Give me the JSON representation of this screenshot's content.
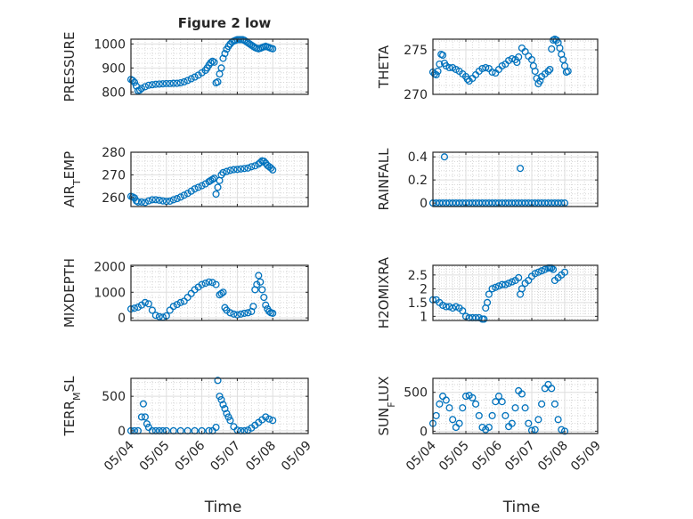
{
  "figure": {
    "title": "Figure 2 low",
    "marker_color": "#0072BD"
  },
  "chart_data": [
    {
      "id": "pressure",
      "type": "scatter",
      "title": "Figure 2 low",
      "ylabel": "PRESSURE",
      "ylabel_parts": [
        {
          "t": "PRESSURE"
        }
      ],
      "xlim": [
        0,
        5
      ],
      "ylim": [
        790,
        1020
      ],
      "yticks": [
        800,
        900,
        1000
      ],
      "x": [
        0.0,
        0.05,
        0.1,
        0.15,
        0.2,
        0.25,
        0.3,
        0.4,
        0.5,
        0.6,
        0.7,
        0.8,
        0.9,
        1.0,
        1.1,
        1.2,
        1.3,
        1.4,
        1.5,
        1.6,
        1.7,
        1.8,
        1.9,
        2.0,
        2.1,
        2.15,
        2.2,
        2.25,
        2.3,
        2.35,
        2.4,
        2.45,
        2.5,
        2.55,
        2.6,
        2.65,
        2.7,
        2.75,
        2.8,
        2.85,
        2.9,
        2.95,
        3.0,
        3.05,
        3.1,
        3.15,
        3.2,
        3.25,
        3.3,
        3.35,
        3.4,
        3.45,
        3.5,
        3.55,
        3.6,
        3.65,
        3.7,
        3.75,
        3.8,
        3.85,
        3.9,
        3.95,
        4.0
      ],
      "y": [
        852,
        848,
        840,
        825,
        805,
        808,
        815,
        822,
        828,
        830,
        832,
        833,
        834,
        835,
        835,
        836,
        836,
        838,
        842,
        848,
        855,
        862,
        870,
        880,
        890,
        900,
        912,
        922,
        928,
        924,
        838,
        842,
        875,
        900,
        940,
        960,
        978,
        990,
        1000,
        1008,
        1012,
        1015,
        1018,
        1018,
        1018,
        1018,
        1015,
        1010,
        1005,
        1000,
        995,
        990,
        985,
        982,
        980,
        982,
        985,
        988,
        990,
        988,
        985,
        982,
        980
      ]
    },
    {
      "id": "theta",
      "type": "scatter",
      "ylabel": "THETA",
      "ylabel_parts": [
        {
          "t": "THETA"
        }
      ],
      "xlim": [
        0,
        5
      ],
      "ylim": [
        270,
        276.2
      ],
      "yticks": [
        270,
        275
      ],
      "x": [
        0.0,
        0.05,
        0.1,
        0.15,
        0.2,
        0.25,
        0.3,
        0.35,
        0.4,
        0.5,
        0.6,
        0.7,
        0.8,
        0.9,
        1.0,
        1.05,
        1.1,
        1.2,
        1.3,
        1.4,
        1.5,
        1.6,
        1.7,
        1.8,
        1.9,
        2.0,
        2.1,
        2.2,
        2.3,
        2.4,
        2.5,
        2.55,
        2.6,
        2.7,
        2.8,
        2.9,
        3.0,
        3.05,
        3.1,
        3.15,
        3.2,
        3.25,
        3.3,
        3.4,
        3.5,
        3.55,
        3.6,
        3.65,
        3.7,
        3.75,
        3.8,
        3.85,
        3.9,
        3.95,
        4.0,
        4.05,
        4.1
      ],
      "y": [
        272.5,
        272.3,
        272.2,
        272.6,
        273.4,
        274.5,
        274.4,
        273.5,
        273.2,
        273.0,
        273.0,
        272.8,
        272.6,
        272.3,
        272.0,
        271.7,
        271.5,
        271.8,
        272.2,
        272.6,
        272.9,
        273.0,
        272.9,
        272.5,
        272.4,
        272.8,
        273.2,
        273.4,
        273.8,
        274.0,
        273.9,
        273.6,
        274.2,
        275.2,
        274.8,
        274.3,
        273.9,
        273.2,
        272.6,
        271.8,
        271.2,
        271.5,
        272.0,
        272.3,
        272.6,
        272.8,
        275.1,
        276.1,
        276.2,
        276.1,
        275.8,
        275.2,
        274.5,
        273.9,
        273.2,
        272.5,
        272.6
      ]
    },
    {
      "id": "air_temp",
      "type": "scatter",
      "ylabel": "AIR_TEMP",
      "ylabel_parts": [
        {
          "t": "AIR"
        },
        {
          "t": "T",
          "sub": true
        },
        {
          "t": "EMP"
        }
      ],
      "xlim": [
        0,
        5
      ],
      "ylim": [
        256,
        280
      ],
      "yticks": [
        260,
        270,
        280
      ],
      "x": [
        0.0,
        0.05,
        0.1,
        0.15,
        0.2,
        0.3,
        0.4,
        0.5,
        0.6,
        0.7,
        0.8,
        0.9,
        1.0,
        1.1,
        1.2,
        1.3,
        1.4,
        1.5,
        1.6,
        1.7,
        1.8,
        1.9,
        2.0,
        2.1,
        2.2,
        2.25,
        2.3,
        2.35,
        2.4,
        2.45,
        2.5,
        2.55,
        2.6,
        2.7,
        2.8,
        2.9,
        3.0,
        3.1,
        3.2,
        3.3,
        3.4,
        3.5,
        3.6,
        3.65,
        3.7,
        3.75,
        3.8,
        3.85,
        3.9,
        3.95,
        4.0
      ],
      "y": [
        260.5,
        260.2,
        259.8,
        258.5,
        258.0,
        258.0,
        257.8,
        258.5,
        259.0,
        259.0,
        258.8,
        258.5,
        258.3,
        258.4,
        259.0,
        259.5,
        260.2,
        261.0,
        261.8,
        262.8,
        263.8,
        264.5,
        265.2,
        266.0,
        267.0,
        267.5,
        268.0,
        268.5,
        261.5,
        264.5,
        267.5,
        270.0,
        271.0,
        271.5,
        272.0,
        272.3,
        272.4,
        272.6,
        272.8,
        273.0,
        273.6,
        274.0,
        274.8,
        275.5,
        276.2,
        276.0,
        275.2,
        274.2,
        273.6,
        273.0,
        272.2
      ]
    },
    {
      "id": "rainfall",
      "type": "scatter",
      "ylabel": "RAINFALL",
      "ylabel_parts": [
        {
          "t": "RAINFALL"
        }
      ],
      "xlim": [
        0,
        5
      ],
      "ylim": [
        -0.03,
        0.44
      ],
      "yticks": [
        0,
        0.2,
        0.4
      ],
      "x": [
        0.0,
        0.1,
        0.2,
        0.3,
        0.4,
        0.5,
        0.6,
        0.7,
        0.8,
        0.9,
        1.0,
        1.1,
        1.2,
        1.3,
        1.4,
        1.5,
        1.6,
        1.7,
        1.8,
        1.9,
        2.0,
        2.1,
        2.2,
        2.3,
        2.4,
        2.5,
        2.6,
        2.7,
        2.8,
        2.9,
        3.0,
        3.1,
        3.2,
        3.3,
        3.4,
        3.5,
        3.6,
        3.7,
        3.8,
        3.9,
        4.0,
        0.35,
        2.65
      ],
      "y": [
        0,
        0,
        0,
        0,
        0,
        0,
        0,
        0,
        0,
        0,
        0,
        0,
        0,
        0,
        0,
        0,
        0,
        0,
        0,
        0,
        0,
        0,
        0,
        0,
        0,
        0,
        0,
        0,
        0,
        0,
        0,
        0,
        0,
        0,
        0,
        0,
        0,
        0,
        0,
        0,
        0,
        0.4,
        0.3
      ]
    },
    {
      "id": "mixdepth",
      "type": "scatter",
      "ylabel": "MIXDEPTH",
      "ylabel_parts": [
        {
          "t": "MIXDEPTH"
        }
      ],
      "xlim": [
        0,
        5
      ],
      "ylim": [
        -100,
        2050
      ],
      "yticks": [
        0,
        1000,
        2000
      ],
      "x": [
        0.0,
        0.1,
        0.2,
        0.3,
        0.4,
        0.5,
        0.6,
        0.7,
        0.8,
        0.9,
        1.0,
        1.1,
        1.2,
        1.3,
        1.4,
        1.5,
        1.6,
        1.7,
        1.8,
        1.9,
        2.0,
        2.1,
        2.2,
        2.3,
        2.4,
        2.5,
        2.55,
        2.6,
        2.65,
        2.7,
        2.8,
        2.9,
        3.0,
        3.1,
        3.2,
        3.3,
        3.4,
        3.45,
        3.5,
        3.55,
        3.6,
        3.65,
        3.7,
        3.75,
        3.8,
        3.85,
        3.9,
        3.95,
        4.0
      ],
      "y": [
        350,
        380,
        420,
        500,
        600,
        550,
        300,
        100,
        50,
        30,
        80,
        300,
        450,
        520,
        600,
        650,
        800,
        950,
        1100,
        1200,
        1300,
        1350,
        1400,
        1380,
        1300,
        900,
        950,
        1000,
        400,
        300,
        200,
        150,
        120,
        150,
        180,
        200,
        250,
        450,
        1100,
        1300,
        1650,
        1400,
        1100,
        800,
        500,
        350,
        250,
        200,
        180
      ]
    },
    {
      "id": "h2omixra",
      "type": "scatter",
      "ylabel": "H2OMIXRA",
      "ylabel_parts": [
        {
          "t": "H2OMIXRA"
        }
      ],
      "xlim": [
        0,
        5
      ],
      "ylim": [
        0.85,
        2.85
      ],
      "yticks": [
        1,
        1.5,
        2,
        2.5
      ],
      "x": [
        0.0,
        0.1,
        0.2,
        0.3,
        0.4,
        0.5,
        0.6,
        0.7,
        0.8,
        0.9,
        1.0,
        1.1,
        1.2,
        1.3,
        1.4,
        1.5,
        1.55,
        1.6,
        1.65,
        1.7,
        1.8,
        1.9,
        2.0,
        2.1,
        2.2,
        2.3,
        2.4,
        2.5,
        2.6,
        2.65,
        2.7,
        2.8,
        2.9,
        3.0,
        3.1,
        3.2,
        3.3,
        3.4,
        3.5,
        3.55,
        3.6,
        3.65,
        3.7,
        3.8,
        3.9,
        4.0
      ],
      "y": [
        1.6,
        1.6,
        1.5,
        1.4,
        1.35,
        1.35,
        1.3,
        1.35,
        1.3,
        1.2,
        1.0,
        0.95,
        0.95,
        0.95,
        0.95,
        0.9,
        0.9,
        1.3,
        1.5,
        1.8,
        2.0,
        2.05,
        2.1,
        2.15,
        2.15,
        2.2,
        2.25,
        2.3,
        2.4,
        1.8,
        2.0,
        2.2,
        2.3,
        2.45,
        2.55,
        2.6,
        2.65,
        2.7,
        2.75,
        2.75,
        2.75,
        2.7,
        2.3,
        2.4,
        2.5,
        2.6
      ]
    },
    {
      "id": "terr_msl",
      "type": "scatter",
      "ylabel": "TERR_MSL",
      "ylabel_parts": [
        {
          "t": "TERR"
        },
        {
          "t": "M",
          "sub": true
        },
        {
          "t": "SL"
        }
      ],
      "xlim": [
        0,
        5
      ],
      "ylim": [
        -40,
        760
      ],
      "yticks": [
        0,
        500
      ],
      "x": [
        0.0,
        0.1,
        0.2,
        0.3,
        0.35,
        0.4,
        0.45,
        0.5,
        0.6,
        0.7,
        0.8,
        0.9,
        1.0,
        1.2,
        1.4,
        1.6,
        1.8,
        2.0,
        2.2,
        2.3,
        2.4,
        2.45,
        2.5,
        2.55,
        2.6,
        2.65,
        2.7,
        2.75,
        2.8,
        2.9,
        3.0,
        3.1,
        3.2,
        3.3,
        3.4,
        3.5,
        3.6,
        3.7,
        3.8,
        3.9,
        4.0
      ],
      "y": [
        0,
        0,
        0,
        200,
        390,
        200,
        100,
        50,
        0,
        0,
        0,
        0,
        0,
        0,
        0,
        0,
        0,
        0,
        0,
        0,
        50,
        730,
        500,
        450,
        380,
        320,
        250,
        200,
        150,
        60,
        10,
        0,
        0,
        10,
        40,
        80,
        120,
        160,
        200,
        170,
        150
      ]
    },
    {
      "id": "sun_flux",
      "type": "scatter",
      "ylabel": "SUN_FLUX",
      "ylabel_parts": [
        {
          "t": "SUN"
        },
        {
          "t": "F",
          "sub": true
        },
        {
          "t": "LUX"
        }
      ],
      "xlim": [
        0,
        5
      ],
      "ylim": [
        -30,
        680
      ],
      "yticks": [
        0,
        500
      ],
      "x": [
        0.0,
        0.1,
        0.2,
        0.3,
        0.4,
        0.5,
        0.6,
        0.7,
        0.8,
        0.9,
        1.0,
        1.1,
        1.2,
        1.3,
        1.4,
        1.5,
        1.6,
        1.7,
        1.8,
        1.9,
        2.0,
        2.1,
        2.2,
        2.3,
        2.4,
        2.5,
        2.6,
        2.7,
        2.8,
        2.9,
        3.0,
        3.1,
        3.2,
        3.3,
        3.4,
        3.5,
        3.6,
        3.7,
        3.8,
        3.9,
        4.0
      ],
      "y": [
        100,
        200,
        350,
        450,
        400,
        300,
        150,
        50,
        100,
        300,
        450,
        460,
        430,
        350,
        200,
        50,
        20,
        50,
        200,
        380,
        450,
        380,
        200,
        60,
        100,
        300,
        520,
        480,
        300,
        100,
        10,
        20,
        150,
        350,
        550,
        600,
        550,
        350,
        150,
        20,
        0
      ]
    }
  ],
  "x_axis": {
    "label": "Time",
    "tick_labels": [
      "05/04",
      "05/05",
      "05/06",
      "05/07",
      "05/08",
      "05/09"
    ],
    "tick_values": [
      0,
      1,
      2,
      3,
      4,
      5
    ]
  }
}
